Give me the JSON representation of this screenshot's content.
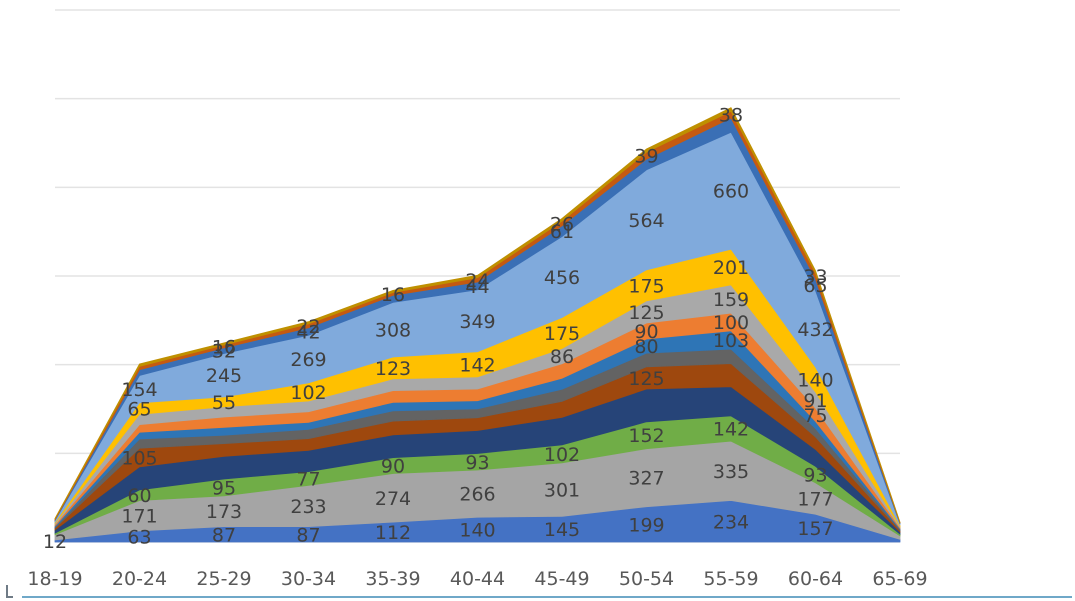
{
  "chart_data": {
    "type": "area",
    "stacked": true,
    "title": "",
    "xlabel": "",
    "ylabel": "",
    "ylim": [
      0,
      3000
    ],
    "grid": true,
    "legend": "none",
    "categories": [
      "18-19",
      "20-24",
      "25-29",
      "30-34",
      "35-39",
      "40-44",
      "45-49",
      "50-54",
      "55-59",
      "60-64",
      "65-69"
    ],
    "series": [
      {
        "color": "#4472c4",
        "values": [
          12,
          63,
          87,
          87,
          112,
          140,
          145,
          199,
          234,
          157,
          15
        ]
      },
      {
        "color": "#a5a5a5",
        "values": [
          30,
          171,
          173,
          233,
          274,
          266,
          301,
          327,
          335,
          177,
          20
        ]
      },
      {
        "color": "#70ad47",
        "values": [
          8,
          60,
          95,
          77,
          90,
          93,
          102,
          152,
          142,
          93,
          10
        ]
      },
      {
        "color": "#264478",
        "values": [
          18,
          130,
          128,
          120,
          128,
          130,
          155,
          185,
          165,
          95,
          12
        ]
      },
      {
        "color": "#9e480e",
        "values": [
          10,
          105,
          72,
          66,
          78,
          72,
          90,
          125,
          130,
          70,
          8
        ]
      },
      {
        "color": "#636363",
        "values": [
          6,
          52,
          47,
          52,
          58,
          50,
          68,
          77,
          82,
          48,
          6
        ]
      },
      {
        "color": "#2e75b6",
        "values": [
          6,
          38,
          45,
          40,
          48,
          46,
          62,
          80,
          103,
          40,
          5
        ]
      },
      {
        "color": "#ed7d31",
        "values": [
          8,
          43,
          58,
          60,
          66,
          66,
          82,
          90,
          100,
          75,
          6
        ]
      },
      {
        "color": "#a9a9a9",
        "values": [
          8,
          58,
          58,
          60,
          66,
          68,
          86,
          125,
          159,
          91,
          6
        ]
      },
      {
        "color": "#ffc000",
        "values": [
          6,
          65,
          55,
          102,
          123,
          142,
          175,
          175,
          201,
          140,
          6
        ]
      },
      {
        "color": "#80aadc",
        "values": [
          10,
          154,
          245,
          269,
          308,
          349,
          456,
          564,
          660,
          432,
          8
        ]
      },
      {
        "color": "#3a6fb5",
        "values": [
          4,
          32,
          32,
          42,
          40,
          44,
          61,
          60,
          80,
          65,
          4
        ]
      },
      {
        "color": "#c55a11",
        "values": [
          4,
          20,
          16,
          22,
          16,
          24,
          26,
          39,
          38,
          33,
          3
        ]
      },
      {
        "color": "#bf9000",
        "values": [
          3,
          13,
          12,
          13,
          12,
          14,
          16,
          18,
          20,
          14,
          2
        ]
      }
    ],
    "data_labels": [
      {
        "x": "18-19",
        "series_index": 0,
        "text": "12"
      },
      {
        "x": "20-24",
        "series_index": 0,
        "text": "63"
      },
      {
        "x": "25-29",
        "series_index": 0,
        "text": "87"
      },
      {
        "x": "30-34",
        "series_index": 0,
        "text": "87"
      },
      {
        "x": "35-39",
        "series_index": 0,
        "text": "112"
      },
      {
        "x": "40-44",
        "series_index": 0,
        "text": "140"
      },
      {
        "x": "45-49",
        "series_index": 0,
        "text": "145"
      },
      {
        "x": "50-54",
        "series_index": 0,
        "text": "199"
      },
      {
        "x": "55-59",
        "series_index": 0,
        "text": "234"
      },
      {
        "x": "60-64",
        "series_index": 0,
        "text": "157"
      },
      {
        "x": "20-24",
        "series_index": 1,
        "text": "171"
      },
      {
        "x": "25-29",
        "series_index": 1,
        "text": "173"
      },
      {
        "x": "30-34",
        "series_index": 1,
        "text": "233"
      },
      {
        "x": "35-39",
        "series_index": 1,
        "text": "274"
      },
      {
        "x": "40-44",
        "series_index": 1,
        "text": "266"
      },
      {
        "x": "45-49",
        "series_index": 1,
        "text": "301"
      },
      {
        "x": "50-54",
        "series_index": 1,
        "text": "327"
      },
      {
        "x": "55-59",
        "series_index": 1,
        "text": "335"
      },
      {
        "x": "60-64",
        "series_index": 1,
        "text": "177"
      },
      {
        "x": "20-24",
        "series_index": 2,
        "text": "60"
      },
      {
        "x": "25-29",
        "series_index": 2,
        "text": "95"
      },
      {
        "x": "30-34",
        "series_index": 2,
        "text": "77"
      },
      {
        "x": "35-39",
        "series_index": 2,
        "text": "90"
      },
      {
        "x": "40-44",
        "series_index": 2,
        "text": "93"
      },
      {
        "x": "45-49",
        "series_index": 2,
        "text": "102"
      },
      {
        "x": "50-54",
        "series_index": 2,
        "text": "152"
      },
      {
        "x": "55-59",
        "series_index": 2,
        "text": "142"
      },
      {
        "x": "60-64",
        "series_index": 2,
        "text": "93"
      },
      {
        "x": "20-24",
        "series_index": 4,
        "text": "105"
      },
      {
        "x": "50-54",
        "series_index": 4,
        "text": "125"
      },
      {
        "x": "55-59",
        "series_index": 6,
        "text": "103"
      },
      {
        "x": "50-54",
        "series_index": 6,
        "text": "80"
      },
      {
        "x": "60-64",
        "series_index": 7,
        "text": "75"
      },
      {
        "x": "55-59",
        "series_index": 7,
        "text": "100"
      },
      {
        "x": "50-54",
        "series_index": 7,
        "text": "90"
      },
      {
        "x": "50-54",
        "series_index": 8,
        "text": "125"
      },
      {
        "x": "55-59",
        "series_index": 8,
        "text": "159"
      },
      {
        "x": "60-64",
        "series_index": 8,
        "text": "91"
      },
      {
        "x": "45-49",
        "series_index": 8,
        "text": "86"
      },
      {
        "x": "20-24",
        "series_index": 9,
        "text": "65"
      },
      {
        "x": "25-29",
        "series_index": 9,
        "text": "55"
      },
      {
        "x": "30-34",
        "series_index": 9,
        "text": "102"
      },
      {
        "x": "35-39",
        "series_index": 9,
        "text": "123"
      },
      {
        "x": "40-44",
        "series_index": 9,
        "text": "142"
      },
      {
        "x": "45-49",
        "series_index": 9,
        "text": "175"
      },
      {
        "x": "50-54",
        "series_index": 9,
        "text": "175"
      },
      {
        "x": "55-59",
        "series_index": 9,
        "text": "201"
      },
      {
        "x": "60-64",
        "series_index": 9,
        "text": "140"
      },
      {
        "x": "20-24",
        "series_index": 10,
        "text": "154"
      },
      {
        "x": "25-29",
        "series_index": 10,
        "text": "245"
      },
      {
        "x": "30-34",
        "series_index": 10,
        "text": "269"
      },
      {
        "x": "35-39",
        "series_index": 10,
        "text": "308"
      },
      {
        "x": "40-44",
        "series_index": 10,
        "text": "349"
      },
      {
        "x": "45-49",
        "series_index": 10,
        "text": "456"
      },
      {
        "x": "50-54",
        "series_index": 10,
        "text": "564"
      },
      {
        "x": "55-59",
        "series_index": 10,
        "text": "660"
      },
      {
        "x": "60-64",
        "series_index": 10,
        "text": "432"
      },
      {
        "x": "60-64",
        "series_index": 11,
        "text": "65"
      },
      {
        "x": "45-49",
        "series_index": 11,
        "text": "61"
      },
      {
        "x": "25-29",
        "series_index": 11,
        "text": "32"
      },
      {
        "x": "30-34",
        "series_index": 11,
        "text": "42"
      },
      {
        "x": "40-44",
        "series_index": 11,
        "text": "44"
      },
      {
        "x": "60-64",
        "series_index": 12,
        "text": "33"
      },
      {
        "x": "45-49",
        "series_index": 12,
        "text": "26"
      },
      {
        "x": "50-54",
        "series_index": 12,
        "text": "39"
      },
      {
        "x": "55-59",
        "series_index": 12,
        "text": "38"
      },
      {
        "x": "25-29",
        "series_index": 12,
        "text": "16"
      },
      {
        "x": "30-34",
        "series_index": 12,
        "text": "22"
      },
      {
        "x": "35-39",
        "series_index": 12,
        "text": "16"
      },
      {
        "x": "40-44",
        "series_index": 12,
        "text": "24"
      }
    ]
  }
}
